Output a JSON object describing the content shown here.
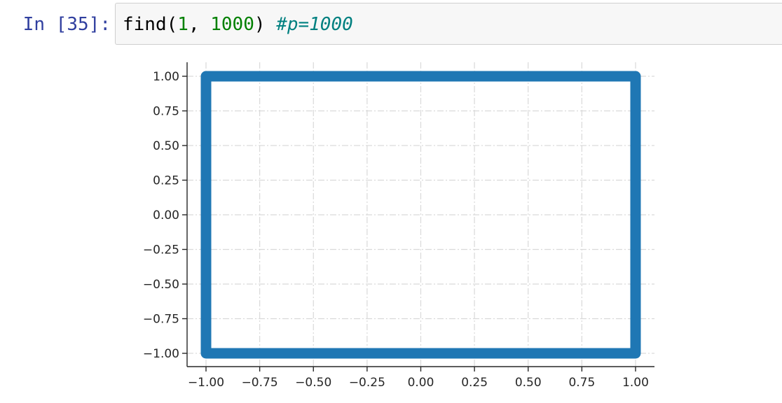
{
  "cell": {
    "prompt": "In [35]:",
    "code": {
      "func": "find(",
      "arg1": "1",
      "sep": ", ",
      "arg2": "1000",
      "close": ") ",
      "comment": "#p=1000"
    }
  },
  "colors": {
    "prompt": "#303f9f",
    "number": "#008000",
    "comment": "#008080",
    "series": "#1f77b4"
  },
  "chart_data": {
    "type": "line",
    "title": "",
    "xlabel": "",
    "ylabel": "",
    "xlim": [
      -1.0,
      1.0
    ],
    "ylim": [
      -1.0,
      1.0
    ],
    "grid": true,
    "x_ticks": [
      "−1.00",
      "−0.75",
      "−0.50",
      "−0.25",
      "0.00",
      "0.25",
      "0.50",
      "0.75",
      "1.00"
    ],
    "y_ticks": [
      "1.00",
      "0.75",
      "0.50",
      "0.25",
      "0.00",
      "−0.25",
      "−0.50",
      "−0.75",
      "−1.00"
    ],
    "series": [
      {
        "x": [
          -1.0,
          1.0,
          1.0,
          -1.0,
          -1.0
        ],
        "y": [
          1.0,
          1.0,
          -1.0,
          -1.0,
          1.0
        ]
      }
    ]
  }
}
